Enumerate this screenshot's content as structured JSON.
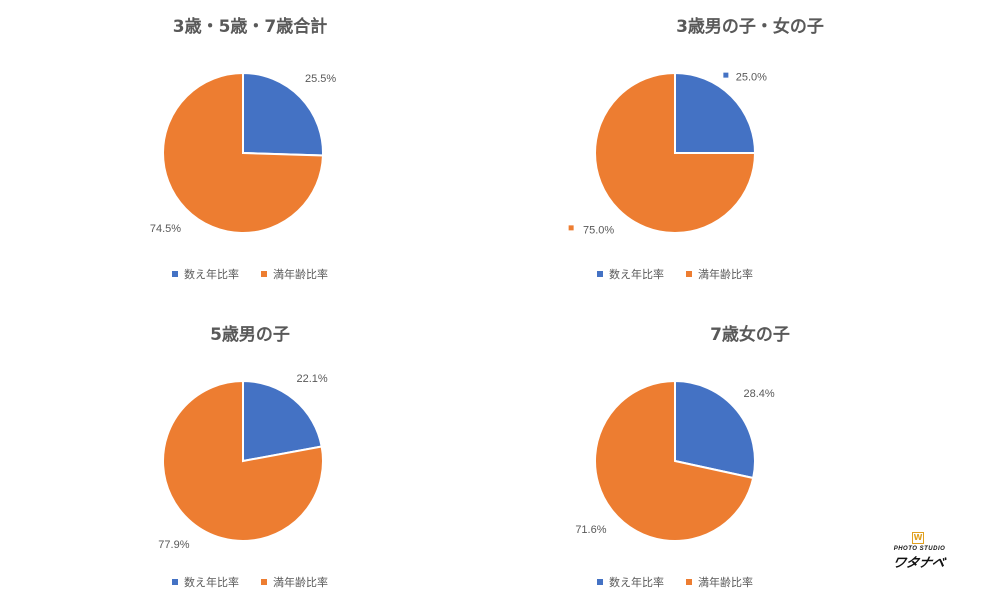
{
  "colors": {
    "blue": "#4472C4",
    "orange": "#ED7D31",
    "text": "#595959"
  },
  "legend": {
    "series_a": "数え年比率",
    "series_b": "満年齢比率"
  },
  "logo": {
    "sub": "PHOTO STUDIO",
    "main": "ワタナベ",
    "emblem": "W"
  },
  "chart_data": [
    {
      "type": "pie",
      "title": "3歳・5歳・7歳合計",
      "categories": [
        "数え年比率",
        "満年齢比率"
      ],
      "values": [
        25.5,
        74.5
      ],
      "labels": [
        "25.5%",
        "74.5%"
      ],
      "legend_position": "bottom"
    },
    {
      "type": "pie",
      "title": "3歳男の子・女の子",
      "categories": [
        "数え年比率",
        "満年齢比率"
      ],
      "values": [
        25.0,
        75.0
      ],
      "labels": [
        "25.0%",
        "75.0%"
      ],
      "legend_position": "bottom"
    },
    {
      "type": "pie",
      "title": "5歳男の子",
      "categories": [
        "数え年比率",
        "満年齢比率"
      ],
      "values": [
        22.1,
        77.9
      ],
      "labels": [
        "22.1%",
        "77.9%"
      ],
      "legend_position": "bottom"
    },
    {
      "type": "pie",
      "title": "7歳女の子",
      "categories": [
        "数え年比率",
        "満年齢比率"
      ],
      "values": [
        28.4,
        71.6
      ],
      "labels": [
        "28.4%",
        "71.6%"
      ],
      "legend_position": "bottom"
    }
  ]
}
